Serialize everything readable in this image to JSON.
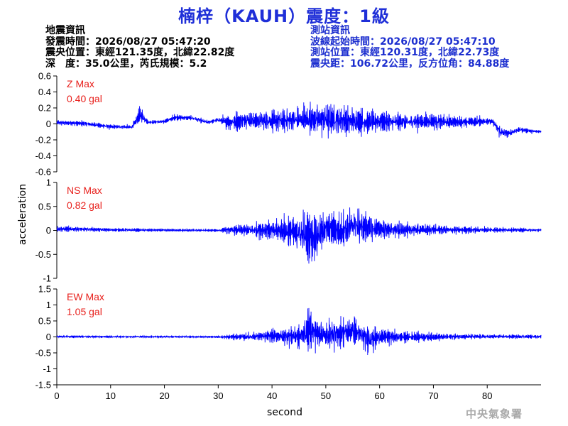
{
  "title": "楠梓（KAUH）震度：1級",
  "earthquake_info": {
    "heading": "地震資訊",
    "origin_time": "發震時間：2026/08/27 05:47:20",
    "epicenter": "震央位置：東經121.35度，北緯22.82度",
    "depth_magnitude": "深　度：35.0公里，芮氏規模：5.2"
  },
  "station_info": {
    "heading": "測站資訊",
    "wave_start": "波線起始時間：2026/08/27 05:47:10",
    "location": "測站位置：東經120.31度，北緯22.73度",
    "distance": "震央距：106.72公里，反方位角：84.88度"
  },
  "watermark": "中央氣象署",
  "colors": {
    "trace": "#0000ff",
    "max_label": "#e8201c",
    "title": "#1f2fd8",
    "station_text": "#1c2ecf"
  },
  "chart_data": {
    "type": "line",
    "xlabel": "second",
    "ylabel": "acceleration",
    "xlim": [
      0,
      90
    ],
    "x_ticks": [
      0,
      10,
      20,
      30,
      40,
      50,
      60,
      70,
      80
    ],
    "panels": [
      {
        "component": "Z",
        "max_label": "Z Max",
        "max_value": "0.40 gal",
        "ylim": [
          -0.6,
          0.6
        ],
        "y_ticks": [
          -0.6,
          -0.4,
          -0.2,
          0,
          0.2,
          0.4,
          0.6
        ],
        "y_tick_labels": [
          "-0.6",
          "-0.4",
          "-0.2",
          "0",
          "0.2",
          "0.4",
          "0.6"
        ],
        "envelope": [
          [
            0,
            -0.04,
            0.07
          ],
          [
            5,
            -0.05,
            0.06
          ],
          [
            10,
            -0.08,
            0.01
          ],
          [
            14,
            -0.08,
            0.0
          ],
          [
            15.5,
            -0.05,
            0.28
          ],
          [
            17,
            -0.01,
            0.05
          ],
          [
            20,
            -0.01,
            0.07
          ],
          [
            22,
            0.02,
            0.14
          ],
          [
            25,
            0.03,
            0.12
          ],
          [
            28,
            -0.02,
            0.06
          ],
          [
            30,
            0.01,
            0.09
          ],
          [
            32,
            -0.14,
            0.18
          ],
          [
            35,
            -0.13,
            0.23
          ],
          [
            40,
            -0.17,
            0.24
          ],
          [
            45,
            -0.18,
            0.29
          ],
          [
            50,
            -0.28,
            0.4
          ],
          [
            53,
            -0.22,
            0.32
          ],
          [
            57,
            -0.2,
            0.24
          ],
          [
            60,
            -0.16,
            0.22
          ],
          [
            65,
            -0.14,
            0.19
          ],
          [
            70,
            -0.12,
            0.18
          ],
          [
            75,
            -0.08,
            0.12
          ],
          [
            80,
            -0.05,
            0.12
          ],
          [
            81,
            -0.02,
            0.08
          ],
          [
            82.5,
            -0.26,
            0.05
          ],
          [
            84,
            -0.18,
            -0.06
          ],
          [
            86,
            -0.12,
            -0.02
          ],
          [
            88,
            -0.13,
            -0.05
          ],
          [
            90,
            -0.13,
            -0.06
          ]
        ]
      },
      {
        "component": "NS",
        "max_label": "NS Max",
        "max_value": "0.82 gal",
        "ylim": [
          -1,
          1
        ],
        "y_ticks": [
          -1,
          -0.5,
          0,
          0.5,
          1
        ],
        "y_tick_labels": [
          "-1",
          "-0.5",
          "0",
          "0.5",
          "1"
        ],
        "envelope": [
          [
            0,
            -0.06,
            0.12
          ],
          [
            5,
            -0.05,
            0.1
          ],
          [
            10,
            -0.04,
            0.06
          ],
          [
            20,
            -0.04,
            0.05
          ],
          [
            30,
            -0.04,
            0.04
          ],
          [
            32,
            -0.1,
            0.12
          ],
          [
            35,
            -0.18,
            0.2
          ],
          [
            40,
            -0.28,
            0.3
          ],
          [
            45,
            -0.7,
            0.6
          ],
          [
            48,
            -0.82,
            0.5
          ],
          [
            50,
            -0.5,
            0.6
          ],
          [
            53,
            -0.6,
            0.55
          ],
          [
            55,
            -0.5,
            0.72
          ],
          [
            58,
            -0.4,
            0.5
          ],
          [
            60,
            -0.3,
            0.35
          ],
          [
            65,
            -0.2,
            0.22
          ],
          [
            70,
            -0.15,
            0.18
          ],
          [
            75,
            -0.1,
            0.12
          ],
          [
            80,
            -0.08,
            0.1
          ],
          [
            85,
            -0.06,
            0.08
          ],
          [
            90,
            -0.05,
            0.06
          ]
        ]
      },
      {
        "component": "EW",
        "max_label": "EW Max",
        "max_value": "1.05 gal",
        "ylim": [
          -1.5,
          1.5
        ],
        "y_ticks": [
          -1.5,
          -1,
          -0.5,
          0,
          0.5,
          1,
          1.5
        ],
        "y_tick_labels": [
          "-1.5",
          "-1",
          "-0.5",
          "0",
          "0.5",
          "1",
          "1.5"
        ],
        "envelope": [
          [
            0,
            -0.04,
            0.06
          ],
          [
            10,
            -0.04,
            0.05
          ],
          [
            20,
            -0.04,
            0.05
          ],
          [
            30,
            -0.04,
            0.04
          ],
          [
            32,
            -0.12,
            0.12
          ],
          [
            35,
            -0.15,
            0.16
          ],
          [
            40,
            -0.25,
            0.3
          ],
          [
            45,
            -0.55,
            0.6
          ],
          [
            47,
            -0.65,
            1.05
          ],
          [
            50,
            -0.6,
            0.7
          ],
          [
            53,
            -0.5,
            0.75
          ],
          [
            55,
            -0.5,
            0.9
          ],
          [
            58,
            -0.72,
            0.55
          ],
          [
            60,
            -0.4,
            0.4
          ],
          [
            65,
            -0.25,
            0.25
          ],
          [
            70,
            -0.18,
            0.18
          ],
          [
            75,
            -0.12,
            0.14
          ],
          [
            80,
            -0.1,
            0.12
          ],
          [
            85,
            -0.08,
            0.1
          ],
          [
            90,
            -0.06,
            0.08
          ]
        ]
      }
    ]
  }
}
